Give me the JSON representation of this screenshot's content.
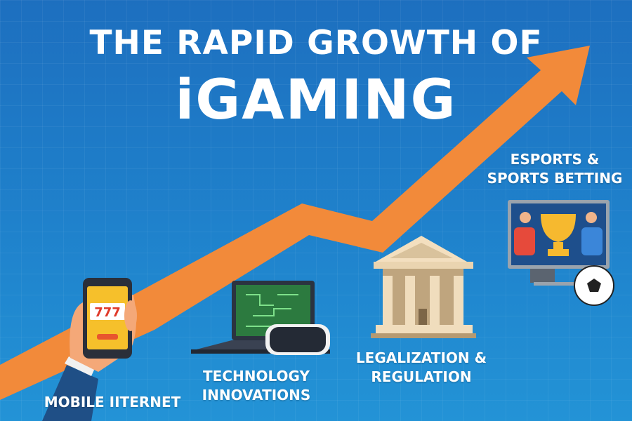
{
  "title": {
    "line1": "THE RAPID GROWTH OF",
    "line2": "iGAMING"
  },
  "colors": {
    "background": "#1f82cc",
    "arrow": "#f28a3a",
    "text": "#ffffff"
  },
  "milestones": [
    {
      "label": "MOBILE IITERNET",
      "icon": "smartphone-slot-777-icon",
      "screen_text": "777"
    },
    {
      "label_line1": "TECHNOLOGY",
      "label_line2": "INNOVATIONS",
      "icon": "laptop-vr-headset-icon"
    },
    {
      "label_line1": "LEGALIZATION &",
      "label_line2": "REGULATION",
      "icon": "government-building-icon"
    },
    {
      "label_line1": "ESPORTS &",
      "label_line2": "SPORTS BETTING",
      "icon": "monitor-trophy-soccer-ball-icon"
    }
  ]
}
